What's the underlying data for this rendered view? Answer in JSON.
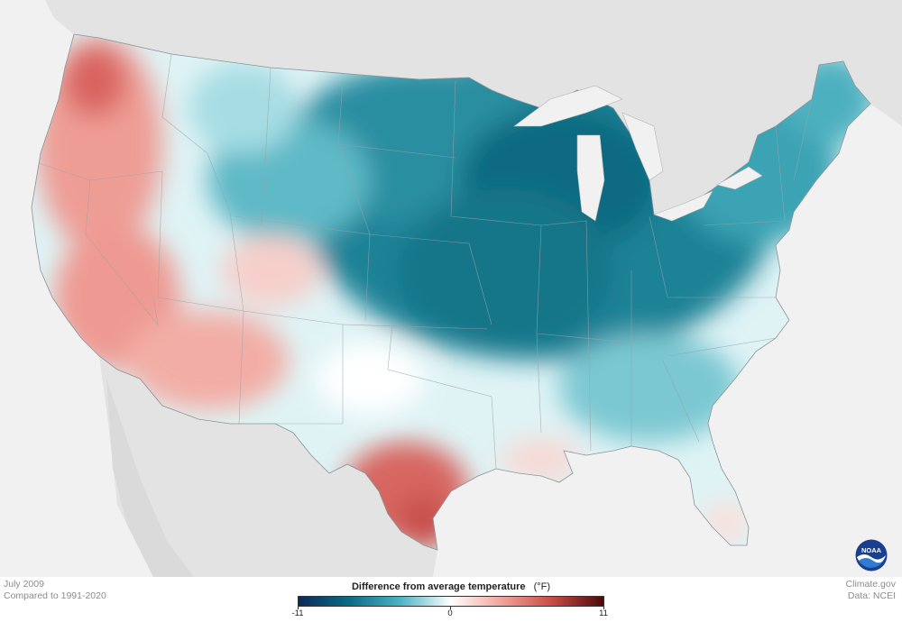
{
  "map": {
    "period": "July 2009",
    "baseline": "Compared to 1991-2020",
    "credit_site": "Climate.gov",
    "credit_data": "Data: NCEI",
    "logo_text": "NOAA"
  },
  "legend": {
    "title": "Difference from average temperature",
    "unit": "(°F)",
    "min_label": "-11",
    "mid_label": "0",
    "max_label": "11",
    "min": -11,
    "max": 11,
    "colors": [
      "#0b2a5a",
      "#0b6b86",
      "#4bb3c4",
      "#ffffff",
      "#f0a39a",
      "#c84a45",
      "#4a0a0a"
    ]
  },
  "anomaly_regions": [
    {
      "region": "Pacific Northwest",
      "level": "warm"
    },
    {
      "region": "California",
      "level": "warm"
    },
    {
      "region": "Desert Southwest",
      "level": "warm"
    },
    {
      "region": "Texas",
      "level": "strong warm"
    },
    {
      "region": "Northern Plains",
      "level": "cool"
    },
    {
      "region": "Upper Midwest",
      "level": "strong cool"
    },
    {
      "region": "Great Lakes",
      "level": "strong cool"
    },
    {
      "region": "Northeast",
      "level": "cool"
    },
    {
      "region": "Southeast",
      "level": "slight cool"
    },
    {
      "region": "Florida",
      "level": "near average"
    }
  ]
}
